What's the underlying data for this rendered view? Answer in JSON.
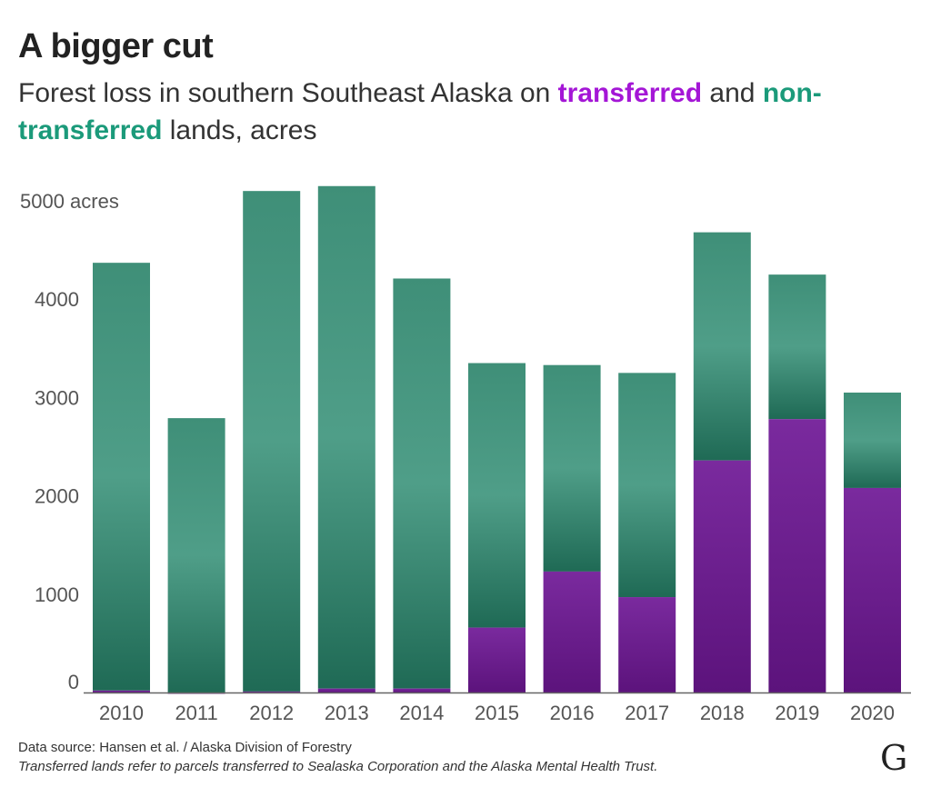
{
  "title": "A bigger cut",
  "subtitle": {
    "part1": "Forest loss in southern Southeast Alaska on ",
    "transferred": "transferred",
    "part2": " and ",
    "non_transferred": "non-transferred",
    "part3": " lands, acres"
  },
  "colors": {
    "transferred": "#6e1a94",
    "non_transferred": "#2f7f6a",
    "transferred_text": "#a416d6",
    "non_transferred_text": "#1b9a7a"
  },
  "chart_data": {
    "type": "bar",
    "stacked": true,
    "categories": [
      "2010",
      "2011",
      "2012",
      "2013",
      "2014",
      "2015",
      "2016",
      "2017",
      "2018",
      "2019",
      "2020"
    ],
    "series": [
      {
        "name": "transferred",
        "values": [
          20,
          0,
          10,
          40,
          40,
          660,
          1230,
          970,
          2360,
          2780,
          2080
        ]
      },
      {
        "name": "non-transferred",
        "values": [
          4350,
          2790,
          5090,
          5110,
          4170,
          2690,
          2100,
          2280,
          2320,
          1470,
          970
        ]
      }
    ],
    "yticks": [
      0,
      1000,
      2000,
      3000,
      4000,
      5000
    ],
    "ytick_labels": [
      "0",
      "1000",
      "2000",
      "3000",
      "4000",
      "5000 acres"
    ],
    "ylim": [
      0,
      5000
    ],
    "grid": false
  },
  "footer": {
    "source": "Data source: Hansen et al. / Alaska Division of Forestry",
    "note": "Transferred lands refer to parcels transferred to Sealaska Corporation and the Alaska Mental Health Trust."
  },
  "logo": "G"
}
